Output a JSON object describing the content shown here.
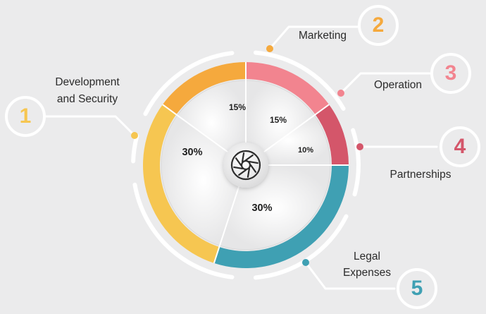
{
  "chart_data": {
    "type": "pie",
    "title": "",
    "categories": [
      "Development and Security",
      "Marketing",
      "Operation",
      "Partnerships",
      "Legal Expenses"
    ],
    "values": [
      30,
      15,
      15,
      10,
      30
    ],
    "value_labels": [
      "30%",
      "15%",
      "15%",
      "10%",
      "30%"
    ],
    "numbers": [
      "1",
      "2",
      "3",
      "4",
      "5"
    ],
    "label_lines": [
      [
        "Development",
        "and Security"
      ],
      [
        "Marketing"
      ],
      [
        "Operation"
      ],
      [
        "Partnerships"
      ],
      [
        "Legal",
        "Expenses"
      ]
    ],
    "colors": [
      "#f6c651",
      "#f5a93d",
      "#f2848f",
      "#d4566a",
      "#3fa0b3"
    ],
    "legend": "none",
    "grid": false,
    "center_icon": "aperture-icon"
  }
}
